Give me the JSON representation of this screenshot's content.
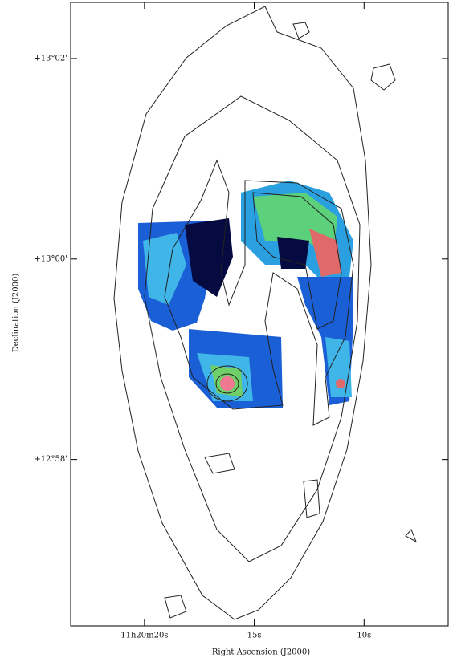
{
  "chart_data": {
    "type": "image",
    "xlabel": "Right Ascension (J2000)",
    "ylabel": "Declination (J2000)",
    "xlim": [
      23.36,
      6.17
    ],
    "xticks": [
      {
        "value": 20,
        "label": "11h20m20s"
      },
      {
        "value": 15,
        "label": "15s"
      },
      {
        "value": 10,
        "label": "10s"
      }
    ],
    "ylim": [
      776.34,
      782.56
    ],
    "yticks": [
      {
        "value": 782,
        "label": "+13°02'"
      },
      {
        "value": 780,
        "label": "+13°00'"
      },
      {
        "value": 778,
        "label": "+12°58'"
      }
    ]
  }
}
